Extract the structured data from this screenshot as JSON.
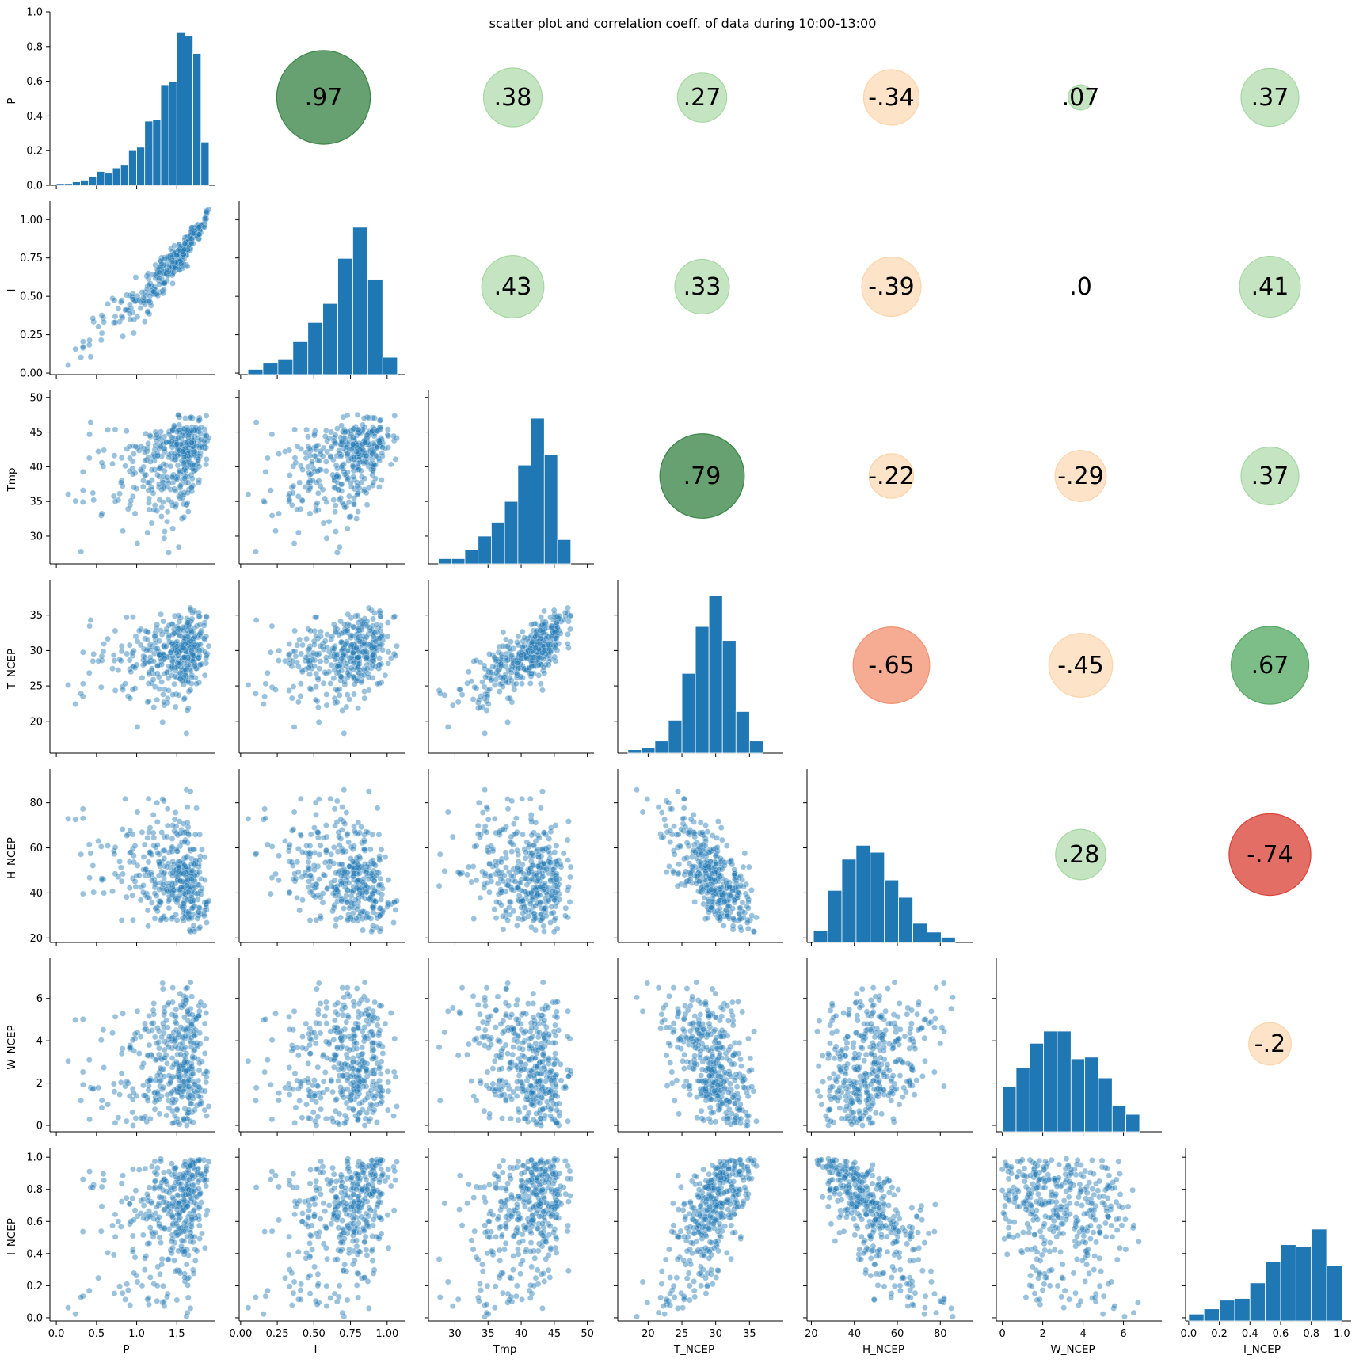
{
  "chart_data": {
    "type": "pairplot",
    "title": "scatter plot and correlation coeff. of data during 10:00-13:00",
    "variables": [
      "P",
      "I",
      "Tmp",
      "T_NCEP",
      "H_NCEP",
      "W_NCEP",
      "I_NCEP"
    ],
    "colors": {
      "hist": "#1f77b4",
      "scatter": "#1f77b4",
      "positive_strong": "#2e7d3a",
      "positive_mid": "#4aa35a",
      "positive_weak": "#9fd49a",
      "negative_strong": "#d8362b",
      "negative_mid": "#f18c6a",
      "negative_weak": "#fcd0a3"
    },
    "axes": [
      {
        "name": "P",
        "lim": [
          -0.08,
          1.98
        ],
        "ticks": [
          0.0,
          0.5,
          1.0,
          1.5
        ],
        "tick_labels": [
          "0.0",
          "0.5",
          "1.0",
          "1.5"
        ],
        "range": [
          0.0,
          1.95
        ]
      },
      {
        "name": "I",
        "lim": [
          -0.01,
          1.12
        ],
        "ticks": [
          0.0,
          0.25,
          0.5,
          0.75,
          1.0
        ],
        "tick_labels": [
          "0.00",
          "0.25",
          "0.50",
          "0.75",
          "1.00"
        ],
        "range": [
          0.05,
          1.09
        ]
      },
      {
        "name": "Tmp",
        "lim": [
          26.0,
          51.0
        ],
        "ticks": [
          30,
          35,
          40,
          45,
          50
        ],
        "tick_labels": [
          "30",
          "35",
          "40",
          "45",
          "50"
        ],
        "range": [
          27.5,
          49.8
        ]
      },
      {
        "name": "T_NCEP",
        "lim": [
          15.5,
          40.0
        ],
        "ticks": [
          20,
          25,
          30,
          35
        ],
        "tick_labels": [
          "20",
          "25",
          "30",
          "35"
        ],
        "range": [
          17.0,
          38.8
        ]
      },
      {
        "name": "H_NCEP",
        "lim": [
          18.0,
          95.0
        ],
        "ticks": [
          20,
          40,
          60,
          80
        ],
        "tick_labels": [
          "20",
          "40",
          "60",
          "80"
        ],
        "range": [
          21.0,
          92.0
        ]
      },
      {
        "name": "W_NCEP",
        "lim": [
          -0.3,
          7.9
        ],
        "ticks": [
          0,
          2,
          4,
          6
        ],
        "tick_labels": [
          "0",
          "2",
          "4",
          "6"
        ],
        "range": [
          0.0,
          7.6
        ]
      },
      {
        "name": "I_NCEP",
        "lim": [
          -0.02,
          1.06
        ],
        "ticks": [
          0.0,
          0.2,
          0.4,
          0.6,
          0.8,
          1.0
        ],
        "tick_labels": [
          "0.0",
          "0.2",
          "0.4",
          "0.6",
          "0.8",
          "1.0"
        ],
        "range": [
          0.0,
          1.03
        ]
      }
    ],
    "first_hist_yaxis": {
      "lim": [
        0.0,
        1.0
      ],
      "ticks": [
        0.0,
        0.2,
        0.4,
        0.6,
        0.8,
        1.0
      ],
      "tick_labels": [
        "0.0",
        "0.2",
        "0.4",
        "0.6",
        "0.8",
        "1.0"
      ]
    },
    "histograms": [
      {
        "var": "P",
        "edges": [
          0.0,
          0.1,
          0.2,
          0.3,
          0.4,
          0.5,
          0.6,
          0.7,
          0.8,
          0.9,
          1.0,
          1.1,
          1.2,
          1.3,
          1.4,
          1.5,
          1.6,
          1.7,
          1.8,
          1.9
        ],
        "counts_rel": [
          0.01,
          0.01,
          0.02,
          0.03,
          0.05,
          0.08,
          0.07,
          0.1,
          0.12,
          0.2,
          0.22,
          0.37,
          0.38,
          0.58,
          0.6,
          0.88,
          0.86,
          0.76,
          0.25
        ]
      },
      {
        "var": "I",
        "edges": [
          0.05,
          0.1522,
          0.2544,
          0.3567,
          0.4589,
          0.5611,
          0.6633,
          0.7656,
          0.8678,
          0.97,
          1.07
        ],
        "counts_rel": [
          0.03,
          0.07,
          0.09,
          0.19,
          0.3,
          0.41,
          0.67,
          0.85,
          0.55,
          0.1
        ]
      },
      {
        "var": "Tmp",
        "edges": [
          27.5,
          29.5,
          31.5,
          33.5,
          35.5,
          37.5,
          39.5,
          41.5,
          43.5,
          45.5,
          47.5,
          49.5
        ],
        "counts_rel": [
          0.03,
          0.03,
          0.08,
          0.16,
          0.24,
          0.36,
          0.57,
          0.84,
          0.63,
          0.14,
          0.0
        ]
      },
      {
        "var": "T_NCEP",
        "edges": [
          17.0,
          19.0,
          21.0,
          23.0,
          25.0,
          27.0,
          29.0,
          31.0,
          33.0,
          35.0,
          37.0,
          39.0
        ],
        "counts_rel": [
          0.02,
          0.03,
          0.07,
          0.19,
          0.46,
          0.73,
          0.91,
          0.65,
          0.24,
          0.07,
          0.0
        ]
      },
      {
        "var": "H_NCEP",
        "edges": [
          21.0,
          27.6,
          34.2,
          40.8,
          47.4,
          54.0,
          60.6,
          67.2,
          73.8,
          80.4,
          87.0,
          93.0
        ],
        "counts_rel": [
          0.07,
          0.3,
          0.48,
          0.56,
          0.52,
          0.36,
          0.26,
          0.11,
          0.06,
          0.03,
          0.0
        ]
      },
      {
        "var": "W_NCEP",
        "edges": [
          0.0,
          0.68,
          1.36,
          2.04,
          2.72,
          3.4,
          4.08,
          4.76,
          5.44,
          6.12,
          6.8,
          7.48
        ],
        "counts_rel": [
          0.26,
          0.37,
          0.51,
          0.58,
          0.58,
          0.42,
          0.43,
          0.31,
          0.15,
          0.1,
          0.0
        ]
      },
      {
        "var": "I_NCEP",
        "edges": [
          0.0,
          0.1,
          0.2,
          0.3,
          0.4,
          0.5,
          0.6,
          0.7,
          0.8,
          0.9,
          1.0
        ],
        "counts_rel": [
          0.04,
          0.07,
          0.12,
          0.13,
          0.22,
          0.34,
          0.44,
          0.43,
          0.53,
          0.32
        ]
      }
    ],
    "correlations": [
      {
        "row": "P",
        "col": "I",
        "value": 0.97,
        "label": ".97"
      },
      {
        "row": "P",
        "col": "Tmp",
        "value": 0.38,
        "label": ".38"
      },
      {
        "row": "P",
        "col": "T_NCEP",
        "value": 0.27,
        "label": ".27"
      },
      {
        "row": "P",
        "col": "H_NCEP",
        "value": -0.34,
        "label": "-.34"
      },
      {
        "row": "P",
        "col": "W_NCEP",
        "value": 0.07,
        "label": ".07"
      },
      {
        "row": "P",
        "col": "I_NCEP",
        "value": 0.37,
        "label": ".37"
      },
      {
        "row": "I",
        "col": "Tmp",
        "value": 0.43,
        "label": ".43"
      },
      {
        "row": "I",
        "col": "T_NCEP",
        "value": 0.33,
        "label": ".33"
      },
      {
        "row": "I",
        "col": "H_NCEP",
        "value": -0.39,
        "label": "-.39"
      },
      {
        "row": "I",
        "col": "W_NCEP",
        "value": 0.0,
        "label": ".0"
      },
      {
        "row": "I",
        "col": "I_NCEP",
        "value": 0.41,
        "label": ".41"
      },
      {
        "row": "Tmp",
        "col": "T_NCEP",
        "value": 0.79,
        "label": ".79"
      },
      {
        "row": "Tmp",
        "col": "H_NCEP",
        "value": -0.22,
        "label": "-.22"
      },
      {
        "row": "Tmp",
        "col": "W_NCEP",
        "value": -0.29,
        "label": "-.29"
      },
      {
        "row": "Tmp",
        "col": "I_NCEP",
        "value": 0.37,
        "label": ".37"
      },
      {
        "row": "T_NCEP",
        "col": "H_NCEP",
        "value": -0.65,
        "label": "-.65"
      },
      {
        "row": "T_NCEP",
        "col": "W_NCEP",
        "value": -0.45,
        "label": "-.45"
      },
      {
        "row": "T_NCEP",
        "col": "I_NCEP",
        "value": 0.67,
        "label": ".67"
      },
      {
        "row": "H_NCEP",
        "col": "W_NCEP",
        "value": 0.28,
        "label": ".28"
      },
      {
        "row": "H_NCEP",
        "col": "I_NCEP",
        "value": -0.74,
        "label": "-.74"
      },
      {
        "row": "W_NCEP",
        "col": "I_NCEP",
        "value": -0.2,
        "label": "-.2"
      }
    ],
    "scatter_points_per_panel": 400,
    "scatter_opacity": 0.45
  }
}
